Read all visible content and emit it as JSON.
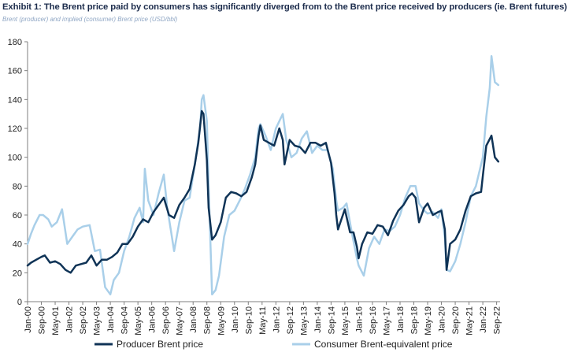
{
  "header": {
    "title": "Exhibit 1: The Brent price paid by consumers has significantly diverged from to the Brent price received by producers (ie. Brent futures)",
    "subtitle": "Brent (producer) and implied (consumer) Brent price (USD/bbl)"
  },
  "colors": {
    "producer": "#0f3356",
    "consumer": "#a9cfe9",
    "axis": "#7f7f7f"
  },
  "chart_data": {
    "type": "line",
    "ylim": [
      0,
      180
    ],
    "yticks": [
      0,
      20,
      40,
      60,
      80,
      100,
      120,
      140,
      160,
      180
    ],
    "xlim": [
      "2000-01",
      "2022-11"
    ],
    "xtick_labels": [
      "Jan-00",
      "Sep-00",
      "May-01",
      "Jan-02",
      "Sep-02",
      "May-03",
      "Jan-04",
      "Sep-04",
      "May-05",
      "Jan-06",
      "Sep-06",
      "May-07",
      "Jan-08",
      "Sep-08",
      "May-09",
      "Jan-10",
      "Sep-10",
      "May-11",
      "Jan-12",
      "Sep-12",
      "May-13",
      "Jan-14",
      "Sep-14",
      "May-15",
      "Jan-16",
      "Sep-16",
      "May-17",
      "Jan-18",
      "Sep-18",
      "May-19",
      "Jan-20",
      "Sep-20",
      "May-21",
      "Jan-22",
      "Sep-22"
    ],
    "grid": false,
    "legend_position": "bottom",
    "series": [
      {
        "name": "Producer Brent price",
        "x": [
          "2000-01",
          "2000-03",
          "2000-06",
          "2000-09",
          "2000-11",
          "2001-02",
          "2001-05",
          "2001-08",
          "2001-11",
          "2002-02",
          "2002-05",
          "2002-08",
          "2002-11",
          "2003-02",
          "2003-05",
          "2003-08",
          "2003-11",
          "2004-02",
          "2004-05",
          "2004-08",
          "2004-11",
          "2005-02",
          "2005-05",
          "2005-08",
          "2005-11",
          "2006-02",
          "2006-05",
          "2006-08",
          "2006-11",
          "2007-02",
          "2007-05",
          "2007-08",
          "2007-11",
          "2008-02",
          "2008-04",
          "2008-06",
          "2008-07",
          "2008-09",
          "2008-10",
          "2008-12",
          "2009-02",
          "2009-05",
          "2009-08",
          "2009-11",
          "2010-02",
          "2010-05",
          "2010-08",
          "2010-11",
          "2011-01",
          "2011-03",
          "2011-04",
          "2011-06",
          "2011-09",
          "2011-12",
          "2012-03",
          "2012-05",
          "2012-06",
          "2012-09",
          "2012-12",
          "2013-03",
          "2013-06",
          "2013-09",
          "2013-12",
          "2014-03",
          "2014-06",
          "2014-09",
          "2014-11",
          "2014-12",
          "2015-01",
          "2015-03",
          "2015-05",
          "2015-08",
          "2015-10",
          "2015-12",
          "2016-01",
          "2016-03",
          "2016-06",
          "2016-09",
          "2016-12",
          "2017-03",
          "2017-06",
          "2017-09",
          "2017-12",
          "2018-03",
          "2018-06",
          "2018-08",
          "2018-10",
          "2018-12",
          "2019-03",
          "2019-05",
          "2019-08",
          "2019-11",
          "2020-01",
          "2020-03",
          "2020-04",
          "2020-06",
          "2020-09",
          "2020-12",
          "2021-03",
          "2021-06",
          "2021-09",
          "2021-12",
          "2022-01",
          "2022-03",
          "2022-06",
          "2022-08",
          "2022-10"
        ],
        "values": [
          25,
          27,
          29,
          31,
          32,
          27,
          28,
          26,
          22,
          20,
          25,
          26,
          27,
          32,
          25,
          29,
          29,
          31,
          34,
          40,
          40,
          45,
          52,
          57,
          55,
          62,
          67,
          72,
          60,
          58,
          67,
          72,
          78,
          95,
          110,
          132,
          130,
          98,
          65,
          43,
          46,
          55,
          72,
          76,
          75,
          73,
          76,
          86,
          95,
          115,
          122,
          112,
          110,
          108,
          120,
          112,
          95,
          112,
          108,
          107,
          103,
          110,
          110,
          108,
          110,
          96,
          75,
          60,
          50,
          57,
          64,
          48,
          48,
          38,
          30,
          40,
          48,
          47,
          53,
          52,
          46,
          56,
          63,
          67,
          73,
          75,
          72,
          55,
          65,
          68,
          60,
          62,
          63,
          50,
          22,
          40,
          43,
          50,
          63,
          73,
          75,
          76,
          87,
          108,
          115,
          100,
          97
        ]
      },
      {
        "name": "Consumer Brent-equivalent price",
        "x": [
          "2000-01",
          "2000-03",
          "2000-05",
          "2000-08",
          "2000-10",
          "2001-01",
          "2001-03",
          "2001-06",
          "2001-09",
          "2001-12",
          "2002-03",
          "2002-06",
          "2002-09",
          "2003-01",
          "2003-04",
          "2003-07",
          "2003-10",
          "2004-01",
          "2004-03",
          "2004-06",
          "2004-09",
          "2004-12",
          "2005-03",
          "2005-06",
          "2005-08",
          "2005-09",
          "2005-11",
          "2006-02",
          "2006-05",
          "2006-08",
          "2006-10",
          "2006-12",
          "2007-02",
          "2007-05",
          "2007-08",
          "2007-11",
          "2008-02",
          "2008-05",
          "2008-06",
          "2008-07",
          "2008-09",
          "2008-10",
          "2008-12",
          "2009-02",
          "2009-04",
          "2009-07",
          "2009-10",
          "2010-01",
          "2010-04",
          "2010-07",
          "2010-10",
          "2011-01",
          "2011-03",
          "2011-04",
          "2011-07",
          "2011-10",
          "2012-01",
          "2012-03",
          "2012-05",
          "2012-07",
          "2012-10",
          "2013-01",
          "2013-04",
          "2013-07",
          "2013-10",
          "2014-01",
          "2014-04",
          "2014-07",
          "2014-10",
          "2014-12",
          "2015-01",
          "2015-04",
          "2015-06",
          "2015-09",
          "2015-12",
          "2016-01",
          "2016-04",
          "2016-07",
          "2016-10",
          "2017-01",
          "2017-04",
          "2017-07",
          "2017-10",
          "2018-01",
          "2018-04",
          "2018-07",
          "2018-10",
          "2018-12",
          "2019-03",
          "2019-05",
          "2019-08",
          "2019-11",
          "2020-01",
          "2020-03",
          "2020-04",
          "2020-06",
          "2020-09",
          "2020-12",
          "2021-03",
          "2021-06",
          "2021-09",
          "2021-12",
          "2022-01",
          "2022-03",
          "2022-05",
          "2022-06",
          "2022-08",
          "2022-10"
        ],
        "values": [
          40,
          47,
          53,
          60,
          60,
          57,
          52,
          55,
          64,
          40,
          45,
          50,
          52,
          53,
          35,
          36,
          10,
          5,
          15,
          20,
          35,
          45,
          58,
          65,
          55,
          92,
          70,
          60,
          75,
          88,
          65,
          50,
          35,
          55,
          70,
          72,
          95,
          120,
          140,
          143,
          125,
          80,
          5,
          8,
          18,
          45,
          60,
          63,
          70,
          78,
          88,
          100,
          120,
          123,
          115,
          105,
          120,
          125,
          130,
          112,
          100,
          103,
          113,
          118,
          103,
          108,
          105,
          105,
          92,
          70,
          63,
          65,
          68,
          48,
          30,
          25,
          18,
          37,
          45,
          40,
          50,
          49,
          52,
          60,
          72,
          80,
          80,
          68,
          63,
          61,
          62,
          58,
          64,
          44,
          22,
          21,
          28,
          40,
          55,
          73,
          80,
          95,
          100,
          128,
          148,
          170,
          152,
          150
        ]
      }
    ]
  }
}
